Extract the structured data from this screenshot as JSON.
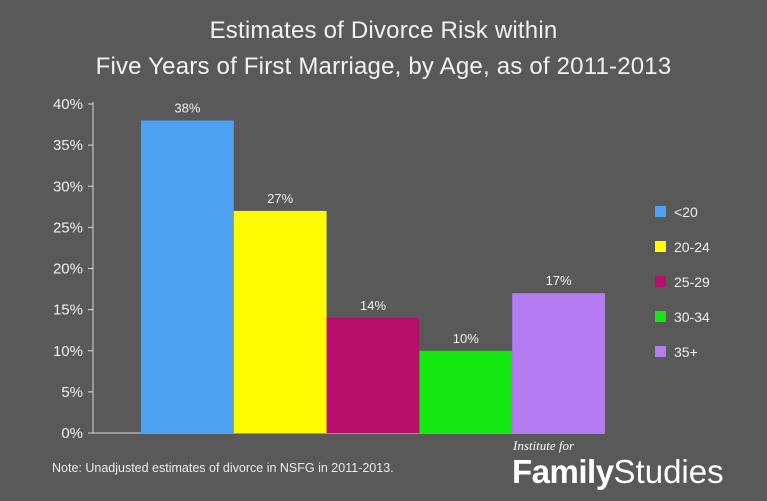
{
  "chart_data": {
    "type": "bar",
    "title_line1": "Estimates of Divorce Risk within",
    "title_line2": "Five Years of First Marriage, by Age, as of 2011-2013",
    "categories": [
      "<20",
      "20-24",
      "25-29",
      "30-34",
      "35+"
    ],
    "values": [
      38,
      27,
      14,
      10,
      17
    ],
    "data_labels": [
      "38%",
      "27%",
      "14%",
      "10%",
      "17%"
    ],
    "colors": [
      "#4da1f3",
      "#fffc00",
      "#b8106a",
      "#12e80f",
      "#b57cf2"
    ],
    "y_ticks": [
      0,
      5,
      10,
      15,
      20,
      25,
      30,
      35,
      40
    ],
    "y_tick_labels": [
      "0%",
      "5%",
      "10%",
      "15%",
      "20%",
      "25%",
      "30%",
      "35%",
      "40%"
    ],
    "ylim": [
      0,
      40
    ],
    "xlabel": "",
    "ylabel": "",
    "grid": false,
    "legend": {
      "placement": "right",
      "entries": [
        "<20",
        "20-24",
        "25-29",
        "30-34",
        "35+"
      ]
    }
  },
  "footer": {
    "note": "Note: Unadjusted estimates of divorce in NSFG in 2011-2013.",
    "brand_small": "Institute for",
    "brand_word1": "Family",
    "brand_word2": "Studies"
  }
}
